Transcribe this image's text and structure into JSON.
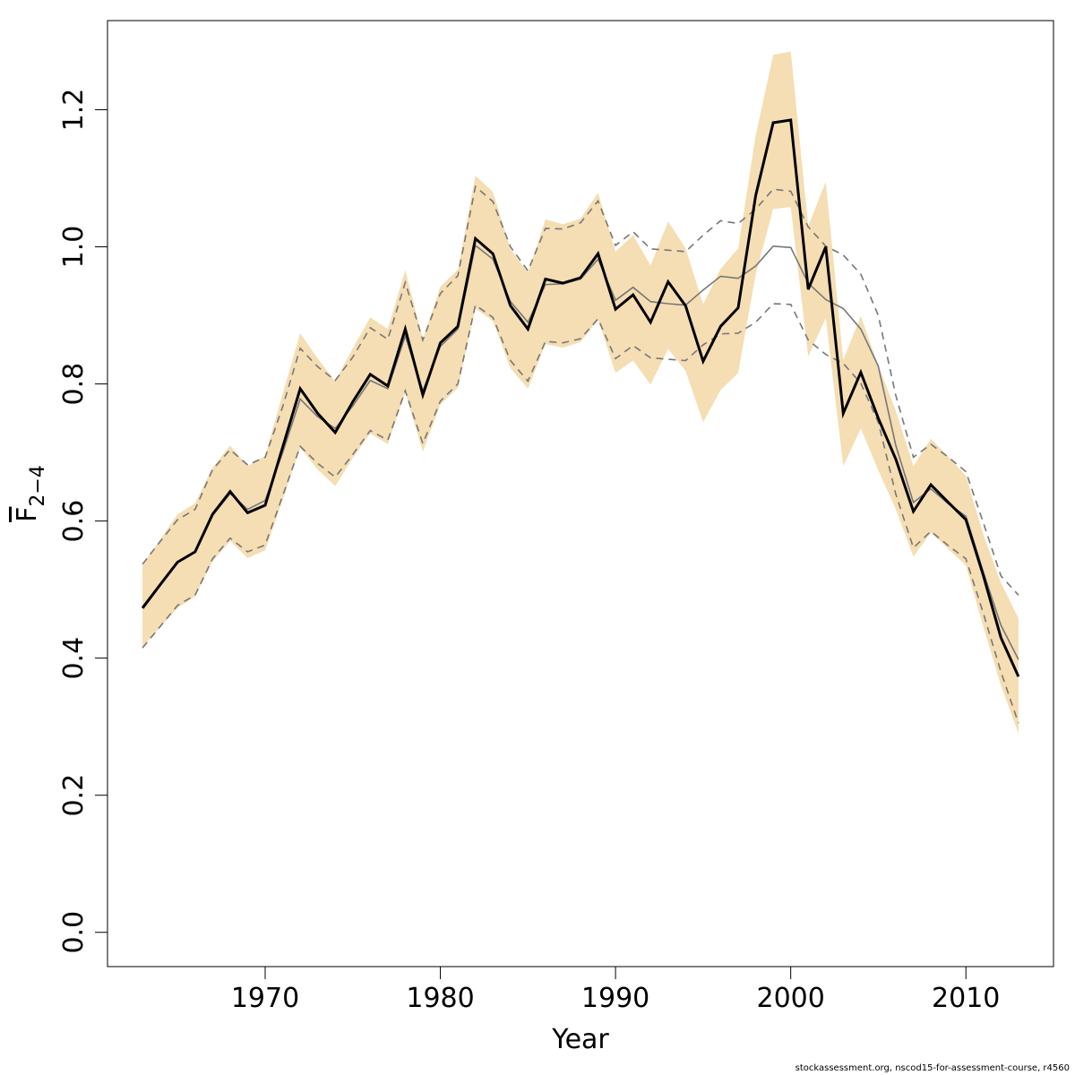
{
  "chart_data": {
    "type": "line",
    "xlabel": "Year",
    "ylabel": {
      "base": "F",
      "subscript": "2−4"
    },
    "xlim": [
      1961,
      2015
    ],
    "ylim": [
      -0.05,
      1.33
    ],
    "xticks": [
      "1970",
      "1980",
      "1990",
      "2000",
      "2010"
    ],
    "yticks": [
      "0.0",
      "0.2",
      "0.4",
      "0.6",
      "0.8",
      "1.0",
      "1.2"
    ],
    "grid": false,
    "band_color": "#f5deb3",
    "years": [
      1963,
      1964,
      1965,
      1966,
      1967,
      1968,
      1969,
      1970,
      1971,
      1972,
      1973,
      1974,
      1975,
      1976,
      1977,
      1978,
      1979,
      1980,
      1981,
      1982,
      1983,
      1984,
      1985,
      1986,
      1987,
      1988,
      1989,
      1990,
      1991,
      1992,
      1993,
      1994,
      1995,
      1996,
      1997,
      1998,
      1999,
      2000,
      2001,
      2002,
      2003,
      2004,
      2005,
      2006,
      2007,
      2008,
      2009,
      2010,
      2011,
      2012,
      2013
    ],
    "series": [
      {
        "role": "estimate",
        "color": "#000000",
        "values": [
          0.473,
          0.507,
          0.54,
          0.555,
          0.61,
          0.643,
          0.612,
          0.623,
          0.708,
          0.793,
          0.757,
          0.729,
          0.774,
          0.814,
          0.797,
          0.88,
          0.784,
          0.86,
          0.884,
          1.012,
          0.99,
          0.914,
          0.88,
          0.953,
          0.947,
          0.955,
          0.99,
          0.909,
          0.93,
          0.89,
          0.949,
          0.914,
          0.833,
          0.884,
          0.911,
          1.075,
          1.181,
          1.185,
          0.938,
          1.0,
          0.757,
          0.817,
          0.75,
          0.69,
          0.614,
          0.653,
          0.627,
          0.602,
          0.52,
          0.43,
          0.373
        ]
      },
      {
        "role": "estimate-lower",
        "band": true,
        "values": [
          0.416,
          0.445,
          0.473,
          0.49,
          0.541,
          0.571,
          0.546,
          0.557,
          0.631,
          0.707,
          0.675,
          0.651,
          0.692,
          0.728,
          0.712,
          0.787,
          0.701,
          0.77,
          0.794,
          0.91,
          0.892,
          0.823,
          0.793,
          0.858,
          0.853,
          0.861,
          0.894,
          0.816,
          0.834,
          0.799,
          0.851,
          0.819,
          0.744,
          0.791,
          0.816,
          0.96,
          1.055,
          1.058,
          0.84,
          0.896,
          0.68,
          0.735,
          0.674,
          0.617,
          0.548,
          0.583,
          0.559,
          0.535,
          0.445,
          0.36,
          0.29
        ]
      },
      {
        "role": "estimate-upper",
        "band": true,
        "values": [
          0.537,
          0.573,
          0.61,
          0.626,
          0.678,
          0.71,
          0.68,
          0.695,
          0.786,
          0.874,
          0.837,
          0.804,
          0.852,
          0.897,
          0.88,
          0.966,
          0.865,
          0.942,
          0.967,
          1.104,
          1.08,
          0.997,
          0.962,
          1.04,
          1.033,
          1.041,
          1.079,
          0.993,
          1.017,
          0.973,
          1.037,
          0.998,
          0.916,
          0.968,
          0.998,
          1.163,
          1.28,
          1.285,
          1.03,
          1.095,
          0.835,
          0.899,
          0.827,
          0.761,
          0.68,
          0.72,
          0.694,
          0.666,
          0.58,
          0.51,
          0.458
        ]
      },
      {
        "role": "reference",
        "color": "#777777",
        "values": [
          0.475,
          0.508,
          0.54,
          0.555,
          0.608,
          0.64,
          0.617,
          0.63,
          0.7,
          0.778,
          0.752,
          0.735,
          0.768,
          0.805,
          0.793,
          0.87,
          0.79,
          0.855,
          0.88,
          1.002,
          0.982,
          0.92,
          0.89,
          0.945,
          0.946,
          0.953,
          0.982,
          0.922,
          0.941,
          0.92,
          0.917,
          0.915,
          0.937,
          0.957,
          0.954,
          0.972,
          1.001,
          0.999,
          0.947,
          0.923,
          0.91,
          0.88,
          0.826,
          0.71,
          0.627,
          0.647,
          0.625,
          0.607,
          0.525,
          0.448,
          0.398
        ]
      },
      {
        "role": "reference-lower",
        "dashed": true,
        "values": [
          0.415,
          0.446,
          0.477,
          0.492,
          0.545,
          0.575,
          0.555,
          0.565,
          0.637,
          0.709,
          0.684,
          0.664,
          0.697,
          0.732,
          0.718,
          0.79,
          0.713,
          0.775,
          0.8,
          0.915,
          0.897,
          0.834,
          0.804,
          0.862,
          0.86,
          0.866,
          0.895,
          0.837,
          0.856,
          0.838,
          0.836,
          0.834,
          0.857,
          0.873,
          0.874,
          0.89,
          0.917,
          0.916,
          0.864,
          0.843,
          0.83,
          0.801,
          0.744,
          0.639,
          0.561,
          0.585,
          0.564,
          0.545,
          0.465,
          0.38,
          0.305
        ]
      },
      {
        "role": "reference-upper",
        "dashed": true,
        "values": [
          0.537,
          0.57,
          0.602,
          0.617,
          0.675,
          0.704,
          0.682,
          0.693,
          0.767,
          0.852,
          0.825,
          0.805,
          0.839,
          0.882,
          0.865,
          0.948,
          0.864,
          0.932,
          0.958,
          1.088,
          1.066,
          1.0,
          0.965,
          1.027,
          1.026,
          1.035,
          1.067,
          1.002,
          1.022,
          0.997,
          0.995,
          0.993,
          1.017,
          1.038,
          1.034,
          1.055,
          1.084,
          1.081,
          1.029,
          1.001,
          0.988,
          0.96,
          0.9,
          0.783,
          0.693,
          0.712,
          0.693,
          0.672,
          0.597,
          0.52,
          0.492
        ]
      }
    ]
  },
  "footer": "stockassessment.org, nscod15-for-assessment-course, r4560"
}
